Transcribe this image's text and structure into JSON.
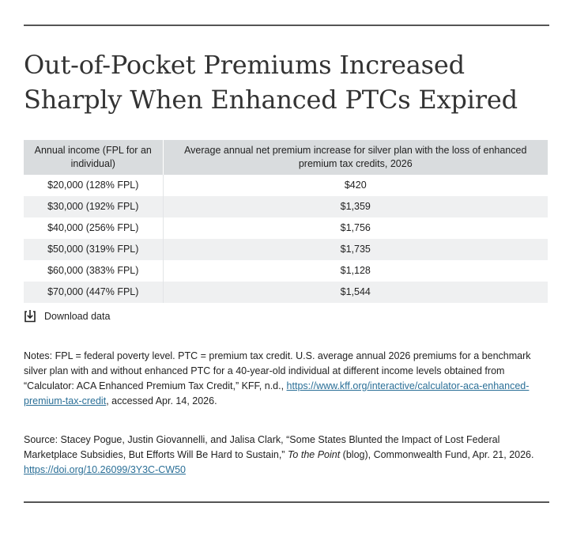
{
  "title_line1": "Out-of-Pocket Premiums Increased",
  "title_line2": "Sharply When Enhanced PTCs Expired",
  "table": {
    "headers": [
      "Annual income (FPL for an individual)",
      "Average annual net premium increase for silver plan with the loss of enhanced premium tax credits, 2026"
    ],
    "rows": [
      {
        "income": "$20,000 (128% FPL)",
        "increase": "$420"
      },
      {
        "income": "$30,000 (192% FPL)",
        "increase": "$1,359"
      },
      {
        "income": "$40,000 (256% FPL)",
        "increase": "$1,756"
      },
      {
        "income": "$50,000 (319% FPL)",
        "increase": "$1,735"
      },
      {
        "income": "$60,000 (383% FPL)",
        "increase": "$1,128"
      },
      {
        "income": "$70,000 (447% FPL)",
        "increase": "$1,544"
      }
    ]
  },
  "download": {
    "label": "Download data",
    "icon": "download-icon"
  },
  "notes": {
    "text": "Notes: FPL = federal poverty level. PTC = premium tax credit. U.S. average annual 2026 premiums for a benchmark silver plan with and without enhanced PTC for a 40-year-old individual at different income levels obtained from “Calculator: ACA Enhanced Premium Tax Credit,” KFF, n.d., ",
    "link": "https://www.kff.org/interactive/calculator-aca-enhanced-premium-tax-credit",
    "after_link": ", accessed Apr. 14, 2026."
  },
  "source": {
    "text": "Source: Stacey Pogue, Justin Giovannelli, and Jalisa Clark, “Some States Blunted the Impact of Lost Federal Marketplace Subsidies, But Efforts Will Be Hard to Sustain,” ",
    "italic": "To the Point",
    "after_italic": " (blog), Commonwealth Fund, Apr. 21, 2026. ",
    "link": "https://doi.org/10.26099/3Y3C-CW50"
  },
  "colors": {
    "header_bg": "#d9dcde",
    "stripe_bg": "#eff0f1",
    "link": "#2a6f97",
    "rule": "#555555"
  }
}
